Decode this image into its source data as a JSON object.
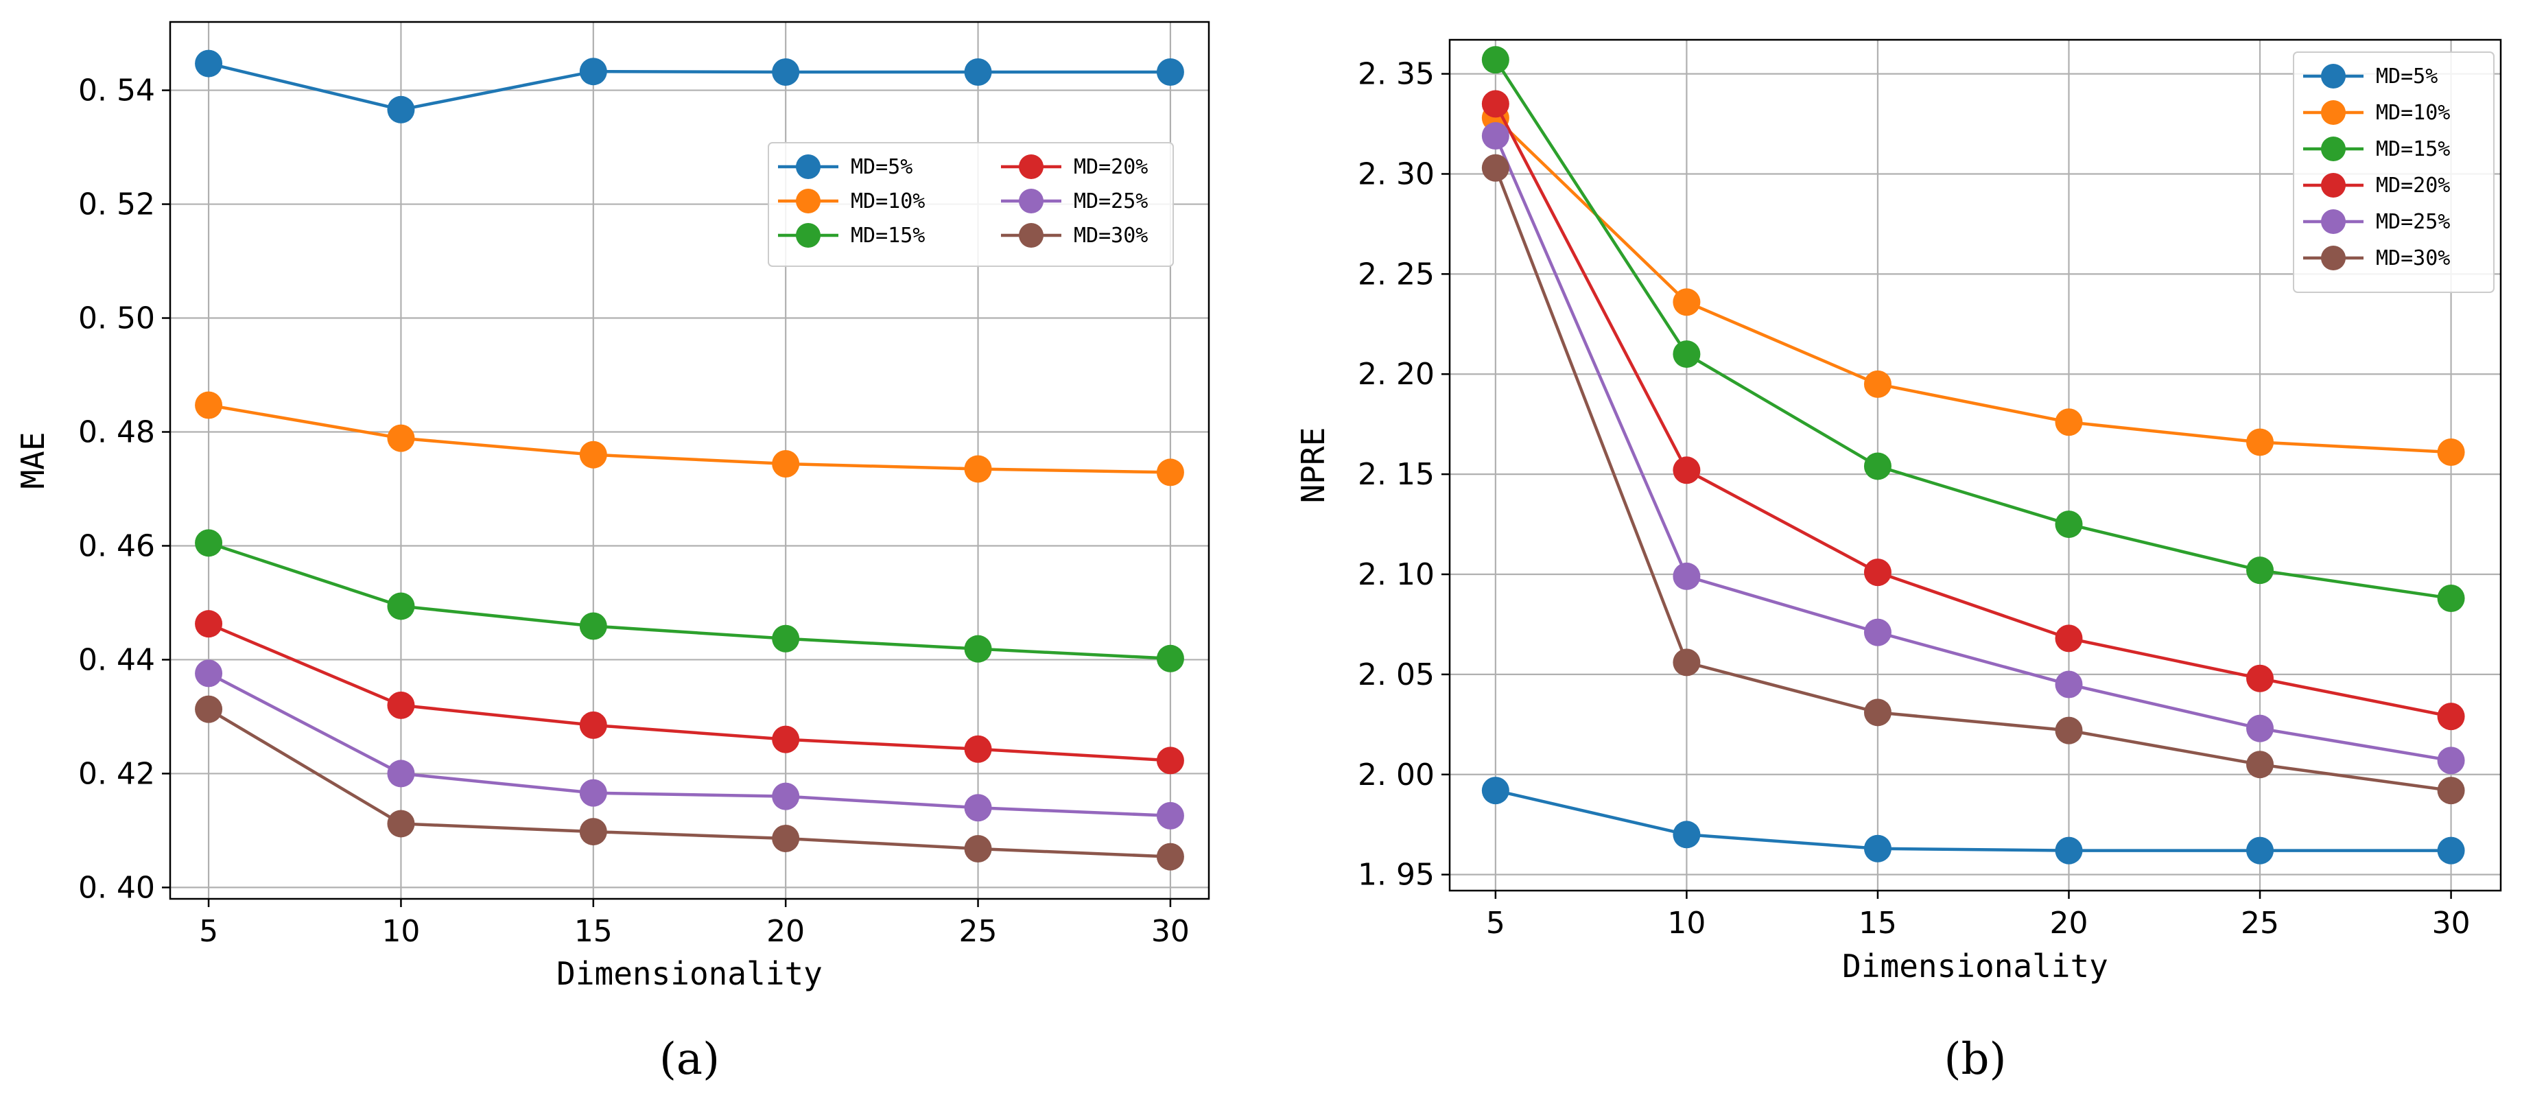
{
  "chart_data": [
    {
      "type": "line",
      "caption": "(a)",
      "xlabel": "Dimensionality",
      "ylabel": "MAE",
      "x": [
        5,
        10,
        15,
        20,
        25,
        30
      ],
      "xlim": [
        4,
        31
      ],
      "ylim": [
        0.398,
        0.552
      ],
      "xticks": [
        5,
        10,
        15,
        20,
        25,
        30
      ],
      "xtick_labels": [
        "5",
        "10",
        "15",
        "20",
        "25",
        "30"
      ],
      "yticks": [
        0.4,
        0.42,
        0.44,
        0.46,
        0.48,
        0.5,
        0.52,
        0.54
      ],
      "ytick_labels": [
        "0. 40",
        "0. 42",
        "0. 44",
        "0. 46",
        "0. 48",
        "0. 50",
        "0. 52",
        "0. 54"
      ],
      "grid": true,
      "legend": {
        "placement": "upper-right",
        "columns": 2
      },
      "series": [
        {
          "name": "MD=5%",
          "color": "#1f77b4",
          "values": [
            0.5447,
            0.5366,
            0.5433,
            0.5432,
            0.5432,
            0.5432
          ]
        },
        {
          "name": "MD=10%",
          "color": "#ff7f0e",
          "values": [
            0.4847,
            0.4789,
            0.476,
            0.4744,
            0.4735,
            0.4729
          ]
        },
        {
          "name": "MD=15%",
          "color": "#2ca02c",
          "values": [
            0.4605,
            0.4494,
            0.4459,
            0.4437,
            0.4419,
            0.4402
          ]
        },
        {
          "name": "MD=20%",
          "color": "#d62728",
          "values": [
            0.4463,
            0.432,
            0.4285,
            0.426,
            0.4243,
            0.4223
          ]
        },
        {
          "name": "MD=25%",
          "color": "#9467bd",
          "values": [
            0.4376,
            0.42,
            0.4166,
            0.416,
            0.414,
            0.4126
          ]
        },
        {
          "name": "MD=30%",
          "color": "#8c564b",
          "values": [
            0.4313,
            0.4112,
            0.4098,
            0.4086,
            0.4068,
            0.4054
          ]
        }
      ]
    },
    {
      "type": "line",
      "caption": "(b)",
      "xlabel": "Dimensionality",
      "ylabel": "NPRE",
      "x": [
        5,
        10,
        15,
        20,
        25,
        30
      ],
      "xlim": [
        3.8,
        31.3
      ],
      "ylim": [
        1.942,
        2.367
      ],
      "xticks": [
        5,
        10,
        15,
        20,
        25,
        30
      ],
      "xtick_labels": [
        "5",
        "10",
        "15",
        "20",
        "25",
        "30"
      ],
      "yticks": [
        1.95,
        2.0,
        2.05,
        2.1,
        2.15,
        2.2,
        2.25,
        2.3,
        2.35
      ],
      "ytick_labels": [
        "1. 95",
        "2. 00",
        "2. 05",
        "2. 10",
        "2. 15",
        "2. 20",
        "2. 25",
        "2. 30",
        "2. 35"
      ],
      "grid": true,
      "legend": {
        "placement": "upper-right",
        "columns": 1
      },
      "series": [
        {
          "name": "MD=5%",
          "color": "#1f77b4",
          "values": [
            1.992,
            1.97,
            1.963,
            1.962,
            1.962,
            1.962
          ]
        },
        {
          "name": "MD=10%",
          "color": "#ff7f0e",
          "values": [
            2.328,
            2.236,
            2.195,
            2.176,
            2.166,
            2.161
          ]
        },
        {
          "name": "MD=15%",
          "color": "#2ca02c",
          "values": [
            2.357,
            2.21,
            2.154,
            2.125,
            2.102,
            2.088
          ]
        },
        {
          "name": "MD=20%",
          "color": "#d62728",
          "values": [
            2.335,
            2.152,
            2.101,
            2.068,
            2.048,
            2.029
          ]
        },
        {
          "name": "MD=25%",
          "color": "#9467bd",
          "values": [
            2.319,
            2.099,
            2.071,
            2.045,
            2.023,
            2.007
          ]
        },
        {
          "name": "MD=30%",
          "color": "#8c564b",
          "values": [
            2.303,
            2.056,
            2.031,
            2.022,
            2.005,
            1.992
          ]
        }
      ]
    }
  ]
}
